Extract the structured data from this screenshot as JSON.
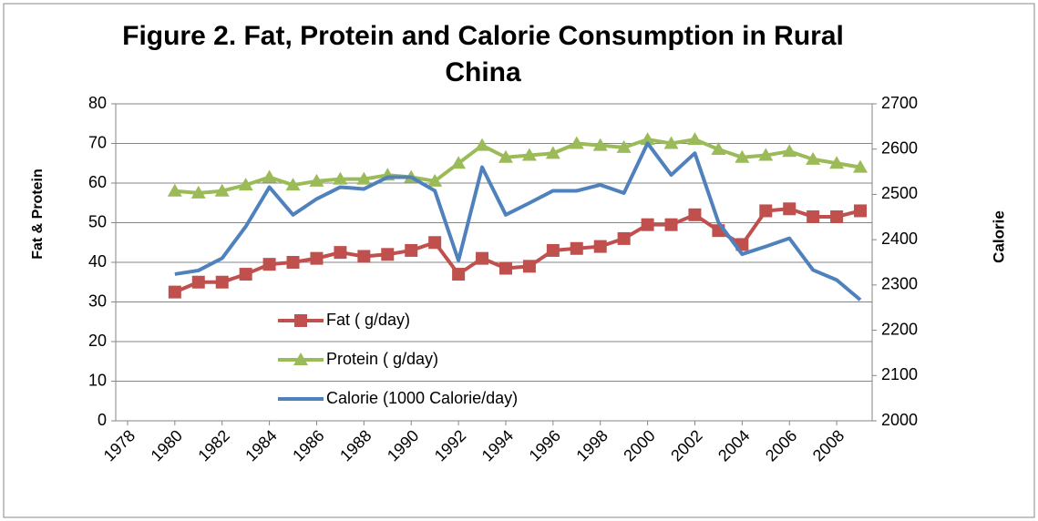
{
  "chart_data": {
    "type": "line",
    "title": "Figure 2. Fat, Protein and Calorie Consumption in Rural China",
    "y_label": "Fat & Protein",
    "y2_label": "Calorie",
    "x": [
      1980,
      1981,
      1982,
      1983,
      1984,
      1985,
      1986,
      1987,
      1988,
      1989,
      1990,
      1991,
      1992,
      1993,
      1994,
      1995,
      1996,
      1997,
      1998,
      1999,
      2000,
      2001,
      2002,
      2003,
      2004,
      2005,
      2006,
      2007,
      2008,
      2009
    ],
    "xlim": [
      1977.5,
      2009.5
    ],
    "xticks": [
      1978,
      1980,
      1982,
      1984,
      1986,
      1988,
      1990,
      1992,
      1994,
      1996,
      1998,
      2000,
      2002,
      2004,
      2006,
      2008
    ],
    "ylim": [
      0,
      80
    ],
    "yticks": [
      0,
      10,
      20,
      30,
      40,
      50,
      60,
      70,
      80
    ],
    "y2lim": [
      2000,
      2700
    ],
    "y2ticks": [
      2000,
      2100,
      2200,
      2300,
      2400,
      2500,
      2600,
      2700
    ],
    "grid": true,
    "series": [
      {
        "name": "Fat ( g/day)",
        "color": "#C0504D",
        "marker": "square",
        "values": [
          32.5,
          35,
          35,
          37,
          39.5,
          40,
          41,
          42.5,
          41.5,
          42,
          43,
          45,
          37,
          41,
          38.5,
          39,
          43,
          43.5,
          44,
          46,
          49.5,
          49.5,
          52,
          48,
          44.5,
          53,
          53.5,
          51.5,
          51.5,
          53
        ]
      },
      {
        "name": "Protein ( g/day)",
        "color": "#9BBB59",
        "marker": "triangle",
        "values": [
          58,
          57.5,
          58,
          59.5,
          61.5,
          59.5,
          60.5,
          61,
          61,
          62,
          61.5,
          60.5,
          65,
          69.5,
          66.5,
          67,
          67.5,
          70,
          69.5,
          69,
          71,
          70,
          71,
          68.5,
          66.5,
          67,
          68,
          66,
          65,
          64
        ]
      },
      {
        "name": "Calorie (1000  Calorie/day)",
        "color": "#4F81BD",
        "marker": "none",
        "axis": "y2",
        "values": [
          2324,
          2332,
          2359,
          2429,
          2516,
          2455,
          2490,
          2516,
          2512,
          2538,
          2538,
          2508,
          2354,
          2560,
          2455,
          2481,
          2508,
          2508,
          2521,
          2503,
          2613,
          2543,
          2591,
          2438,
          2368,
          2385,
          2403,
          2333,
          2311,
          2267
        ]
      }
    ]
  }
}
